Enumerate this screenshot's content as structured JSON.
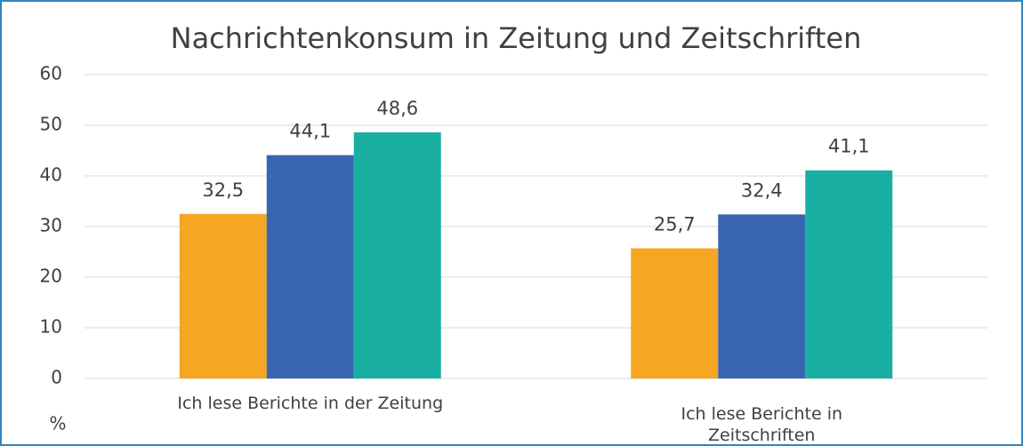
{
  "chart_data": {
    "type": "bar",
    "title": "Nachrichtenkonsum in Zeitung und Zeitschriften",
    "ylabel": "%",
    "categories": [
      "Ich lese Berichte in der Zeitung",
      "Ich lese Berichte in Zeitschriften"
    ],
    "series": [
      {
        "color": "#F5A623",
        "values": [
          32.5,
          25.7
        ],
        "value_labels": [
          "32,5",
          "25,7"
        ]
      },
      {
        "color": "#3A65B0",
        "values": [
          44.1,
          32.4
        ],
        "value_labels": [
          "44,1",
          "32,4"
        ]
      },
      {
        "color": "#1AAFA3",
        "values": [
          48.6,
          41.1
        ],
        "value_labels": [
          "48,6",
          "41,1"
        ]
      }
    ],
    "ylim": [
      0,
      60
    ],
    "yticks": [
      0,
      10,
      20,
      30,
      40,
      50,
      60
    ],
    "grid": true
  }
}
